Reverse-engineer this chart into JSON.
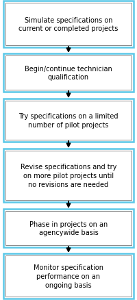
{
  "background_color": "#ffffff",
  "box_fill_color": "#ffffff",
  "box_inner_edge_color": "#888888",
  "box_outer_edge_color": "#5bc8e8",
  "arrow_color": "#000000",
  "text_color": "#000000",
  "boxes": [
    "Simulate specifications on\ncurrent or completed projects",
    "Begin/continue technician\nqualification",
    "Try specifications on a limited\nnumber of pilot projects",
    "Revise specifications and try\non more pilot projects until\nno revisions are needed",
    "Phase in projects on an\nagencywide basis",
    "Monitor specification\nperformance on an\nongoing basis"
  ],
  "font_size": 7.0,
  "fig_width": 2.0,
  "fig_height": 4.39,
  "dpi": 100,
  "outer_lw": 1.8,
  "inner_lw": 0.7
}
